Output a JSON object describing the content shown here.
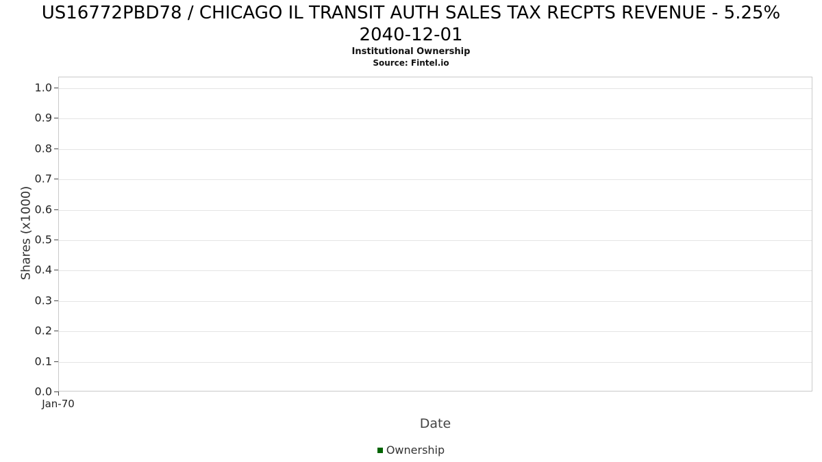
{
  "header": {
    "title_line1": "US16772PBD78 / CHICAGO IL TRANSIT AUTH SALES TAX RECPTS REVENUE - 5.25%",
    "title_line2": "2040-12-01",
    "subtitle": "Institutional Ownership",
    "source": "Source: Fintel.io"
  },
  "chart_data": {
    "type": "line",
    "title": "US16772PBD78 / CHICAGO IL TRANSIT AUTH SALES TAX RECPTS REVENUE - 5.25% 2040-12-01",
    "subtitle": "Institutional Ownership",
    "source": "Source: Fintel.io",
    "xlabel": "Date",
    "ylabel": "Shares (x1000)",
    "ylim": [
      0.0,
      1.04
    ],
    "yticks": [
      "0.0",
      "0.1",
      "0.2",
      "0.3",
      "0.4",
      "0.5",
      "0.6",
      "0.7",
      "0.8",
      "0.9",
      "1.0"
    ],
    "xticks": [
      "Jan-70"
    ],
    "grid": "horizontal",
    "legend_position": "bottom-center",
    "series": [
      {
        "name": "Ownership",
        "color": "#006400",
        "x": [],
        "y": []
      }
    ]
  }
}
